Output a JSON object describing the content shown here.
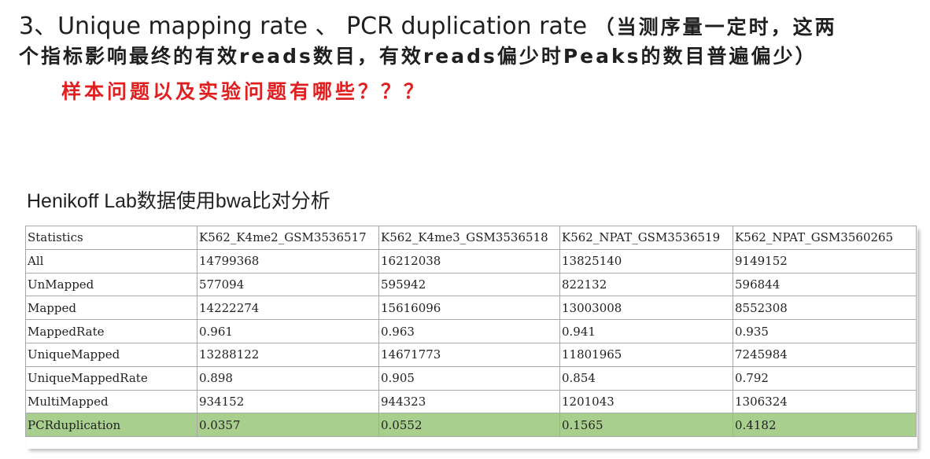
{
  "heading": {
    "line1_en": "3、Unique mapping rate 、 PCR duplication rate",
    "line1_zh": "（当测序量一定时，这两",
    "line2": "个指标影响最终的有效reads数目，有效reads偏少时Peaks的数目普遍偏少）"
  },
  "question": "样本问题以及实验问题有哪些？？？",
  "subtitle": "Henikoff Lab数据使用bwa比对分析",
  "colors": {
    "question_text": "#e02020",
    "highlight_row": "#a9cf8f",
    "border": "#a8a8a8"
  },
  "table": {
    "rows": [
      [
        "Statistics",
        "K562_K4me2_GSM3536517",
        "K562_K4me3_GSM3536518",
        "K562_NPAT_GSM3536519",
        "K562_NPAT_GSM3560265"
      ],
      [
        "All",
        "14799368",
        "16212038",
        "13825140",
        "9149152"
      ],
      [
        "UnMapped",
        "577094",
        "595942",
        "822132",
        "596844"
      ],
      [
        "Mapped",
        "14222274",
        "15616096",
        "13003008",
        "8552308"
      ],
      [
        "MappedRate",
        "0.961",
        "0.963",
        "0.941",
        "0.935"
      ],
      [
        "UniqueMapped",
        "13288122",
        "14671773",
        "11801965",
        "7245984"
      ],
      [
        "UniqueMappedRate",
        "0.898",
        "0.905",
        "0.854",
        "0.792"
      ],
      [
        "MultiMapped",
        "934152",
        "944323",
        "1201043",
        "1306324"
      ],
      [
        "PCRduplication",
        "0.0357",
        "0.0552",
        "0.1565",
        "0.4182"
      ]
    ]
  }
}
